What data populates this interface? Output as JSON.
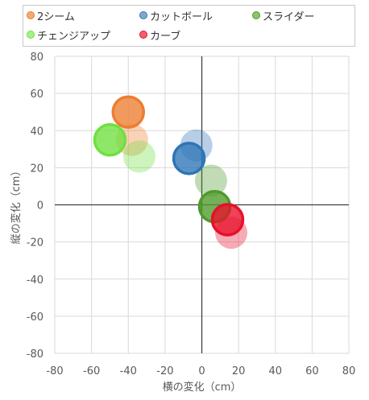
{
  "chart_data": {
    "type": "bubble",
    "title": "",
    "xlabel": "横の変化（cm）",
    "ylabel": "縦の変化（cm）",
    "xlim": [
      -80,
      80
    ],
    "ylim": [
      -80,
      80
    ],
    "xticks": [
      -80,
      -60,
      -40,
      -20,
      0,
      20,
      40,
      60,
      80
    ],
    "yticks": [
      -80,
      -60,
      -40,
      -20,
      0,
      20,
      40,
      60,
      80
    ],
    "grid": true,
    "legend_position": "top",
    "series": [
      {
        "name": "2シーム",
        "color": "#ED7D31",
        "points": [
          {
            "x": -38,
            "y": 35,
            "faded": true
          },
          {
            "x": -40,
            "y": 50,
            "faded": false
          }
        ]
      },
      {
        "name": "カットボール",
        "color": "#2E75B6",
        "points": [
          {
            "x": -3,
            "y": 32,
            "faded": true
          },
          {
            "x": -7,
            "y": 25,
            "faded": false
          }
        ]
      },
      {
        "name": "スライダー",
        "color": "#4E9A2A",
        "points": [
          {
            "x": 5,
            "y": 13,
            "faded": true
          },
          {
            "x": 7,
            "y": -1,
            "faded": false
          }
        ]
      },
      {
        "name": "チェンジアップ",
        "color": "#70E040",
        "points": [
          {
            "x": -34,
            "y": 26,
            "faded": true
          },
          {
            "x": -50,
            "y": 35,
            "faded": false
          }
        ]
      },
      {
        "name": "カーブ",
        "color": "#E8102A",
        "points": [
          {
            "x": 16,
            "y": -15,
            "faded": true
          },
          {
            "x": 14,
            "y": -8,
            "faded": false
          }
        ]
      }
    ]
  }
}
